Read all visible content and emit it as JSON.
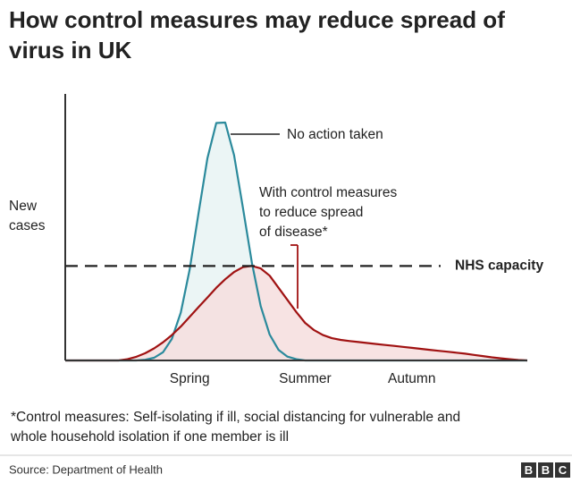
{
  "chart_data": {
    "type": "area",
    "title": [
      "How control measures may reduce spread of",
      "virus in UK"
    ],
    "ylabel": [
      "New",
      "cases"
    ],
    "categories": [
      null,
      null,
      null,
      null,
      null,
      null,
      null,
      null,
      null,
      null,
      null,
      null,
      null,
      null,
      "Spring",
      null,
      null,
      null,
      null,
      null,
      null,
      null,
      null,
      null,
      null,
      null,
      null,
      "Summer",
      null,
      null,
      null,
      null,
      null,
      null,
      null,
      null,
      null,
      null,
      null,
      "Autumn",
      null,
      null,
      null,
      null,
      null,
      null,
      null,
      null,
      null,
      null,
      null,
      null,
      null
    ],
    "ylim": [
      0,
      110
    ],
    "series": [
      {
        "label_lines": [
          "No action taken"
        ],
        "color": "#2b8a9c",
        "fill": "#e8f3f3",
        "values": [
          0,
          0,
          0,
          0,
          0,
          0,
          0,
          0,
          0,
          0.3,
          1.1,
          3.4,
          8.9,
          19.8,
          37.5,
          60.7,
          83.5,
          98,
          98.2,
          84.7,
          63,
          40.4,
          22.4,
          10.7,
          4.4,
          1.6,
          0.5,
          0,
          0,
          0,
          0,
          0,
          0,
          0,
          0,
          0,
          0,
          0,
          0,
          0,
          0,
          0,
          0,
          0,
          0,
          0,
          0,
          0,
          0,
          0,
          0,
          0,
          0
        ]
      },
      {
        "label_lines": [
          "With control measures",
          "to reduce spread",
          "of disease*"
        ],
        "color": "#a01212",
        "fill": "#f6dede",
        "values": [
          0,
          0,
          0,
          0,
          0,
          0,
          0,
          0.5,
          1.5,
          3,
          5,
          7.5,
          10.5,
          14,
          18,
          22,
          26,
          30,
          33.5,
          36.5,
          38.5,
          39,
          38,
          35,
          30,
          25,
          20,
          15.5,
          12.5,
          10.5,
          9.2,
          8.5,
          8,
          7.6,
          7.2,
          6.8,
          6.4,
          6,
          5.6,
          5.2,
          4.8,
          4.4,
          4,
          3.6,
          3.2,
          2.8,
          2.3,
          1.8,
          1.3,
          0.9,
          0.5,
          0.2,
          0
        ]
      }
    ],
    "reference_line": {
      "value": 39,
      "label": "NHS capacity"
    },
    "footnote": [
      "*Control measures: Self-isolating if ill, social distancing for vulnerable and",
      "whole household isolation if one member is ill"
    ],
    "source": "Source: Department of Health",
    "logo": [
      "B",
      "B",
      "C"
    ]
  }
}
